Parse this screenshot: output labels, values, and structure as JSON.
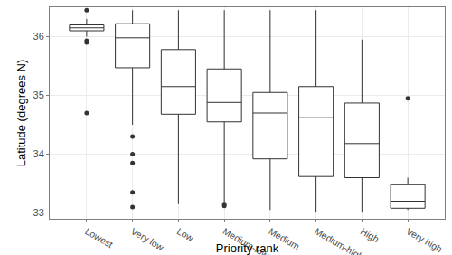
{
  "chart_data": {
    "type": "box",
    "xlabel": "Priority rank",
    "ylabel": "Latitude (degrees N)",
    "categories": [
      "Lowest",
      "Very low",
      "Low",
      "Medium-low",
      "Medium",
      "Medium-high",
      "High",
      "Very high"
    ],
    "boxes": [
      {
        "lower": 36.0,
        "q1": 36.1,
        "median": 36.15,
        "q3": 36.2,
        "upper": 36.3,
        "outliers": [
          36.45,
          35.93,
          35.9,
          34.7
        ]
      },
      {
        "lower": 34.5,
        "q1": 35.47,
        "median": 35.98,
        "q3": 36.22,
        "upper": 36.45,
        "outliers": [
          34.3,
          34.0,
          33.85,
          33.35,
          33.1
        ]
      },
      {
        "lower": 33.15,
        "q1": 34.68,
        "median": 35.15,
        "q3": 35.78,
        "upper": 36.45,
        "outliers": []
      },
      {
        "lower": 33.17,
        "q1": 34.55,
        "median": 34.88,
        "q3": 35.45,
        "upper": 36.45,
        "outliers": [
          33.12,
          33.15
        ]
      },
      {
        "lower": 33.05,
        "q1": 33.92,
        "median": 34.7,
        "q3": 35.05,
        "upper": 36.45,
        "outliers": []
      },
      {
        "lower": 33.02,
        "q1": 33.62,
        "median": 34.62,
        "q3": 35.15,
        "upper": 36.45,
        "outliers": []
      },
      {
        "lower": 33.02,
        "q1": 33.6,
        "median": 34.18,
        "q3": 34.87,
        "upper": 35.95,
        "outliers": []
      },
      {
        "lower": 33.05,
        "q1": 33.08,
        "median": 33.2,
        "q3": 33.48,
        "upper": 33.6,
        "outliers": [
          34.95
        ]
      }
    ],
    "ylim": [
      32.9,
      36.5
    ],
    "yticks": [
      33,
      34,
      35,
      36
    ],
    "grid": true,
    "color": "#333333"
  }
}
